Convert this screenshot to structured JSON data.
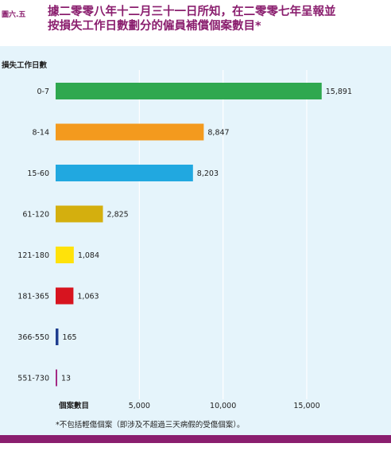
{
  "figure_number": "圖六.五",
  "title_line1": "據二零零八年十二月三十一日所知，在二零零七年呈報並",
  "title_line2": "按損失工作日數劃分的僱員補償個案數目*",
  "footnote": "*不包括輕傷個案（即涉及不超過三天病假的受傷個案）。",
  "colors": {
    "panel": "#e5f4fb",
    "brand": "#8a1e6e",
    "gridline": "#ffffff"
  },
  "chart_data": {
    "type": "bar",
    "orientation": "horizontal",
    "ylabel": "損失工作日數",
    "xlabel": "個案數目",
    "categories": [
      "0-7",
      "8-14",
      "15-60",
      "61-120",
      "121-180",
      "181-365",
      "366-550",
      "551-730"
    ],
    "values": [
      15891,
      8847,
      8203,
      2825,
      1084,
      1063,
      165,
      13
    ],
    "value_labels": [
      "15,891",
      "8,847",
      "8,203",
      "2,825",
      "1,084",
      "1,063",
      "165",
      "13"
    ],
    "bar_colors": [
      "#2fa84f",
      "#f39a1e",
      "#21a8e0",
      "#d4af0e",
      "#ffe20a",
      "#d7141f",
      "#1f3e8f",
      "#a32a84"
    ],
    "label_colors": [
      "#1f7a3a",
      "#b7741a",
      "#1a7fb0",
      "#8a7410",
      "#b19b10",
      "#c8141f",
      "#1f3e8f",
      "#a32a84"
    ],
    "xlim": [
      0,
      20000
    ],
    "x_ticks": [
      5000,
      10000,
      15000
    ],
    "x_tick_labels": [
      "5,000",
      "10,000",
      "15,000"
    ],
    "grid": true
  }
}
